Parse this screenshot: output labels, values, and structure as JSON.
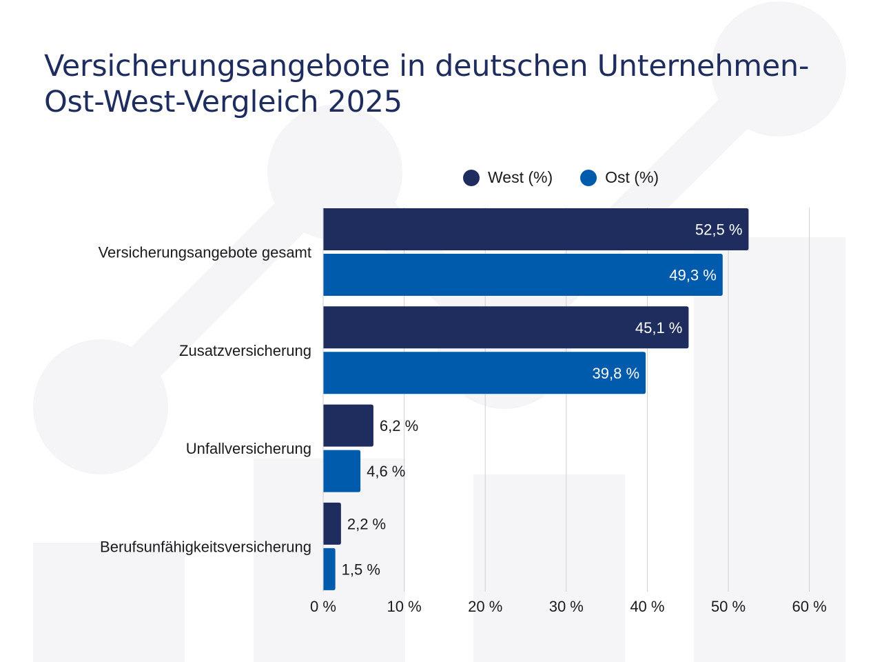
{
  "title_line1": "Versicherungsangebote in deutschen Unternehmen-",
  "title_line2": "Ost-West-Vergleich 2025",
  "colors": {
    "west": "#1f2d5e",
    "ost": "#005bac",
    "grid": "#cfcfcf",
    "background_shape": "#f5f5f8"
  },
  "chart_data": {
    "type": "bar",
    "orientation": "horizontal",
    "title": "Versicherungsangebote in deutschen Unternehmen- Ost-West-Vergleich 2025",
    "categories": [
      "Versicherungsangebote gesamt",
      "Zusatzversicherung",
      "Unfallversicherung",
      "Berufsunfähigkeitsversicherung"
    ],
    "series": [
      {
        "name": "West (%)",
        "values": [
          52.5,
          45.1,
          6.2,
          2.2
        ],
        "labels": [
          "52,5 %",
          "45,1 %",
          "6,2 %",
          "2,2 %"
        ]
      },
      {
        "name": "Ost (%)",
        "values": [
          49.3,
          39.8,
          4.6,
          1.5
        ],
        "labels": [
          "49,3 %",
          "39,8 %",
          "4,6 %",
          "1,5 %"
        ]
      }
    ],
    "xlim": [
      0,
      60
    ],
    "xticks": [
      0,
      10,
      20,
      30,
      40,
      50,
      60
    ],
    "xtick_labels": [
      "0 %",
      "10 %",
      "20 %",
      "30 %",
      "40 %",
      "50 %",
      "60 %"
    ],
    "legend": "top",
    "grid": true
  }
}
